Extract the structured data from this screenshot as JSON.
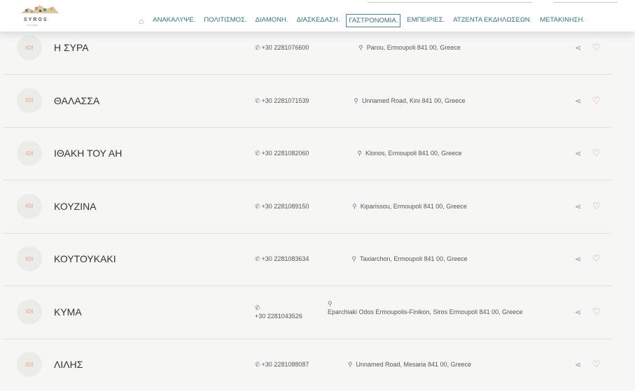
{
  "header": {
    "logo_text": "SYROS",
    "logo_sub": "CYCLADES",
    "nav": [
      {
        "label": "ΑΝΑΚΑΛΥΨΕ."
      },
      {
        "label": "ΠΟΛΙΤΙΣΜΟΣ."
      },
      {
        "label": "ΔΙΑΜΟΝΗ."
      },
      {
        "label": "ΔΙΑΣΚΕΔΑΣΗ."
      },
      {
        "label": "ΓΑΣΤΡΟΝΟΜΙΑ.",
        "active": true
      },
      {
        "label": "ΕΜΠΕΙΡΙΕΣ."
      },
      {
        "label": "ΑΤΖΕΝΤΑ ΕΚΔΗΛΩΣΕΩΝ."
      },
      {
        "label": "ΜΕΤΑΚΙΝΗΣΗ."
      }
    ],
    "home_icon": "home-icon"
  },
  "colors": {
    "nav": "#3a6f80",
    "accent": "#d98b80",
    "background": "#f6f6f5"
  },
  "restaurants": [
    {
      "badge": "ΙΟΙ",
      "name": "Η ΣΥΡΑ",
      "phone": "+30 2281076600",
      "address": "Parou, Ermoupoli 841 00, Greece"
    },
    {
      "badge": "ΙΟΙ",
      "name": "ΘΑΛΑΣΣΑ",
      "phone": "+30 2281071539",
      "address": "Unnamed Road, Kini 841 00, Greece"
    },
    {
      "badge": "ΙΟΙ",
      "name": "ΙΘΑΚΗ ΤΟΥ ΑΗ",
      "phone": "+30 2281082060",
      "address": "Klonos, Ermoupoli 841 00, Greece"
    },
    {
      "badge": "ΙΟΙ",
      "name": "ΚΟΥΖΙΝΑ",
      "phone": "+30 2281089150",
      "address": "Kiparissou, Ermoupoli 841 00, Greece"
    },
    {
      "badge": "ΙΟΙ",
      "name": "ΚΟΥΤΟΥΚΑΚΙ",
      "phone": "+30 2281083634",
      "address": "Taxiarchon, Ermoupoli 841 00, Greece"
    },
    {
      "badge": "ΙΟΙ",
      "name": "ΚΥΜΑ",
      "phone": "+30 2281043526",
      "address": "Eparchiaki Odos Ermoupolis-Finikon, Siros Ermoupoli 841 00, Greece",
      "stacked": true
    },
    {
      "badge": "ΙΟΙ",
      "name": "ΛΙΛΗΣ",
      "phone": "+30 2281088087",
      "address": "Unnamed Road, Mesaria 841 00, Greece"
    }
  ]
}
